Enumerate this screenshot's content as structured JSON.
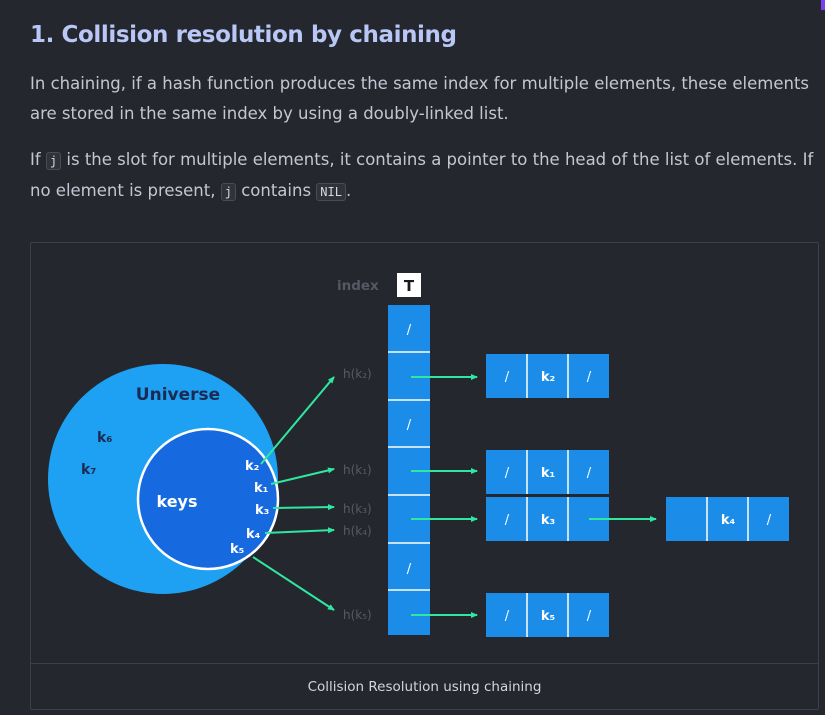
{
  "heading": "1. Collision resolution by chaining",
  "paragraph1": {
    "text": "In chaining, if a hash function produces the same index for multiple elements, these elements are stored in the same index by using a doubly-linked list."
  },
  "paragraph2": {
    "pre": "If ",
    "code1": "j",
    "mid1": " is the slot for multiple elements, it contains a pointer to the head of the list of elements. If no element is present, ",
    "code2": "j",
    "mid2": " contains ",
    "code3": "NIL",
    "post": "."
  },
  "diagram": {
    "index_label": "index",
    "table_label": "T",
    "universe_label": "Universe",
    "keys_label": "keys",
    "outer_keys": [
      "k₆",
      "k₇"
    ],
    "inner_keys": [
      "k₂",
      "k₁",
      "k₃",
      "k₄",
      "k₅"
    ],
    "slots": [
      "/",
      "",
      "/",
      "",
      "",
      "/",
      ""
    ],
    "hash_labels": [
      "h(k₂)",
      "h(k₁)",
      "h(k₃)",
      "h(k₄)",
      "h(k₅)"
    ],
    "nodes": [
      {
        "prev": "/",
        "key": "k₂",
        "next": "/"
      },
      {
        "prev": "/",
        "key": "k₁",
        "next": "/"
      },
      {
        "prev": "/",
        "key": "k₃",
        "next": ""
      },
      {
        "prev": "",
        "key": "k₄",
        "next": "/"
      },
      {
        "prev": "/",
        "key": "k₅",
        "next": "/"
      }
    ],
    "colors": {
      "outer_circle": "#1ea1f2",
      "inner_circle": "#1769e0",
      "table": "#1b8de8",
      "arrow": "#2ee8a0"
    }
  },
  "caption": "Collision Resolution using chaining"
}
